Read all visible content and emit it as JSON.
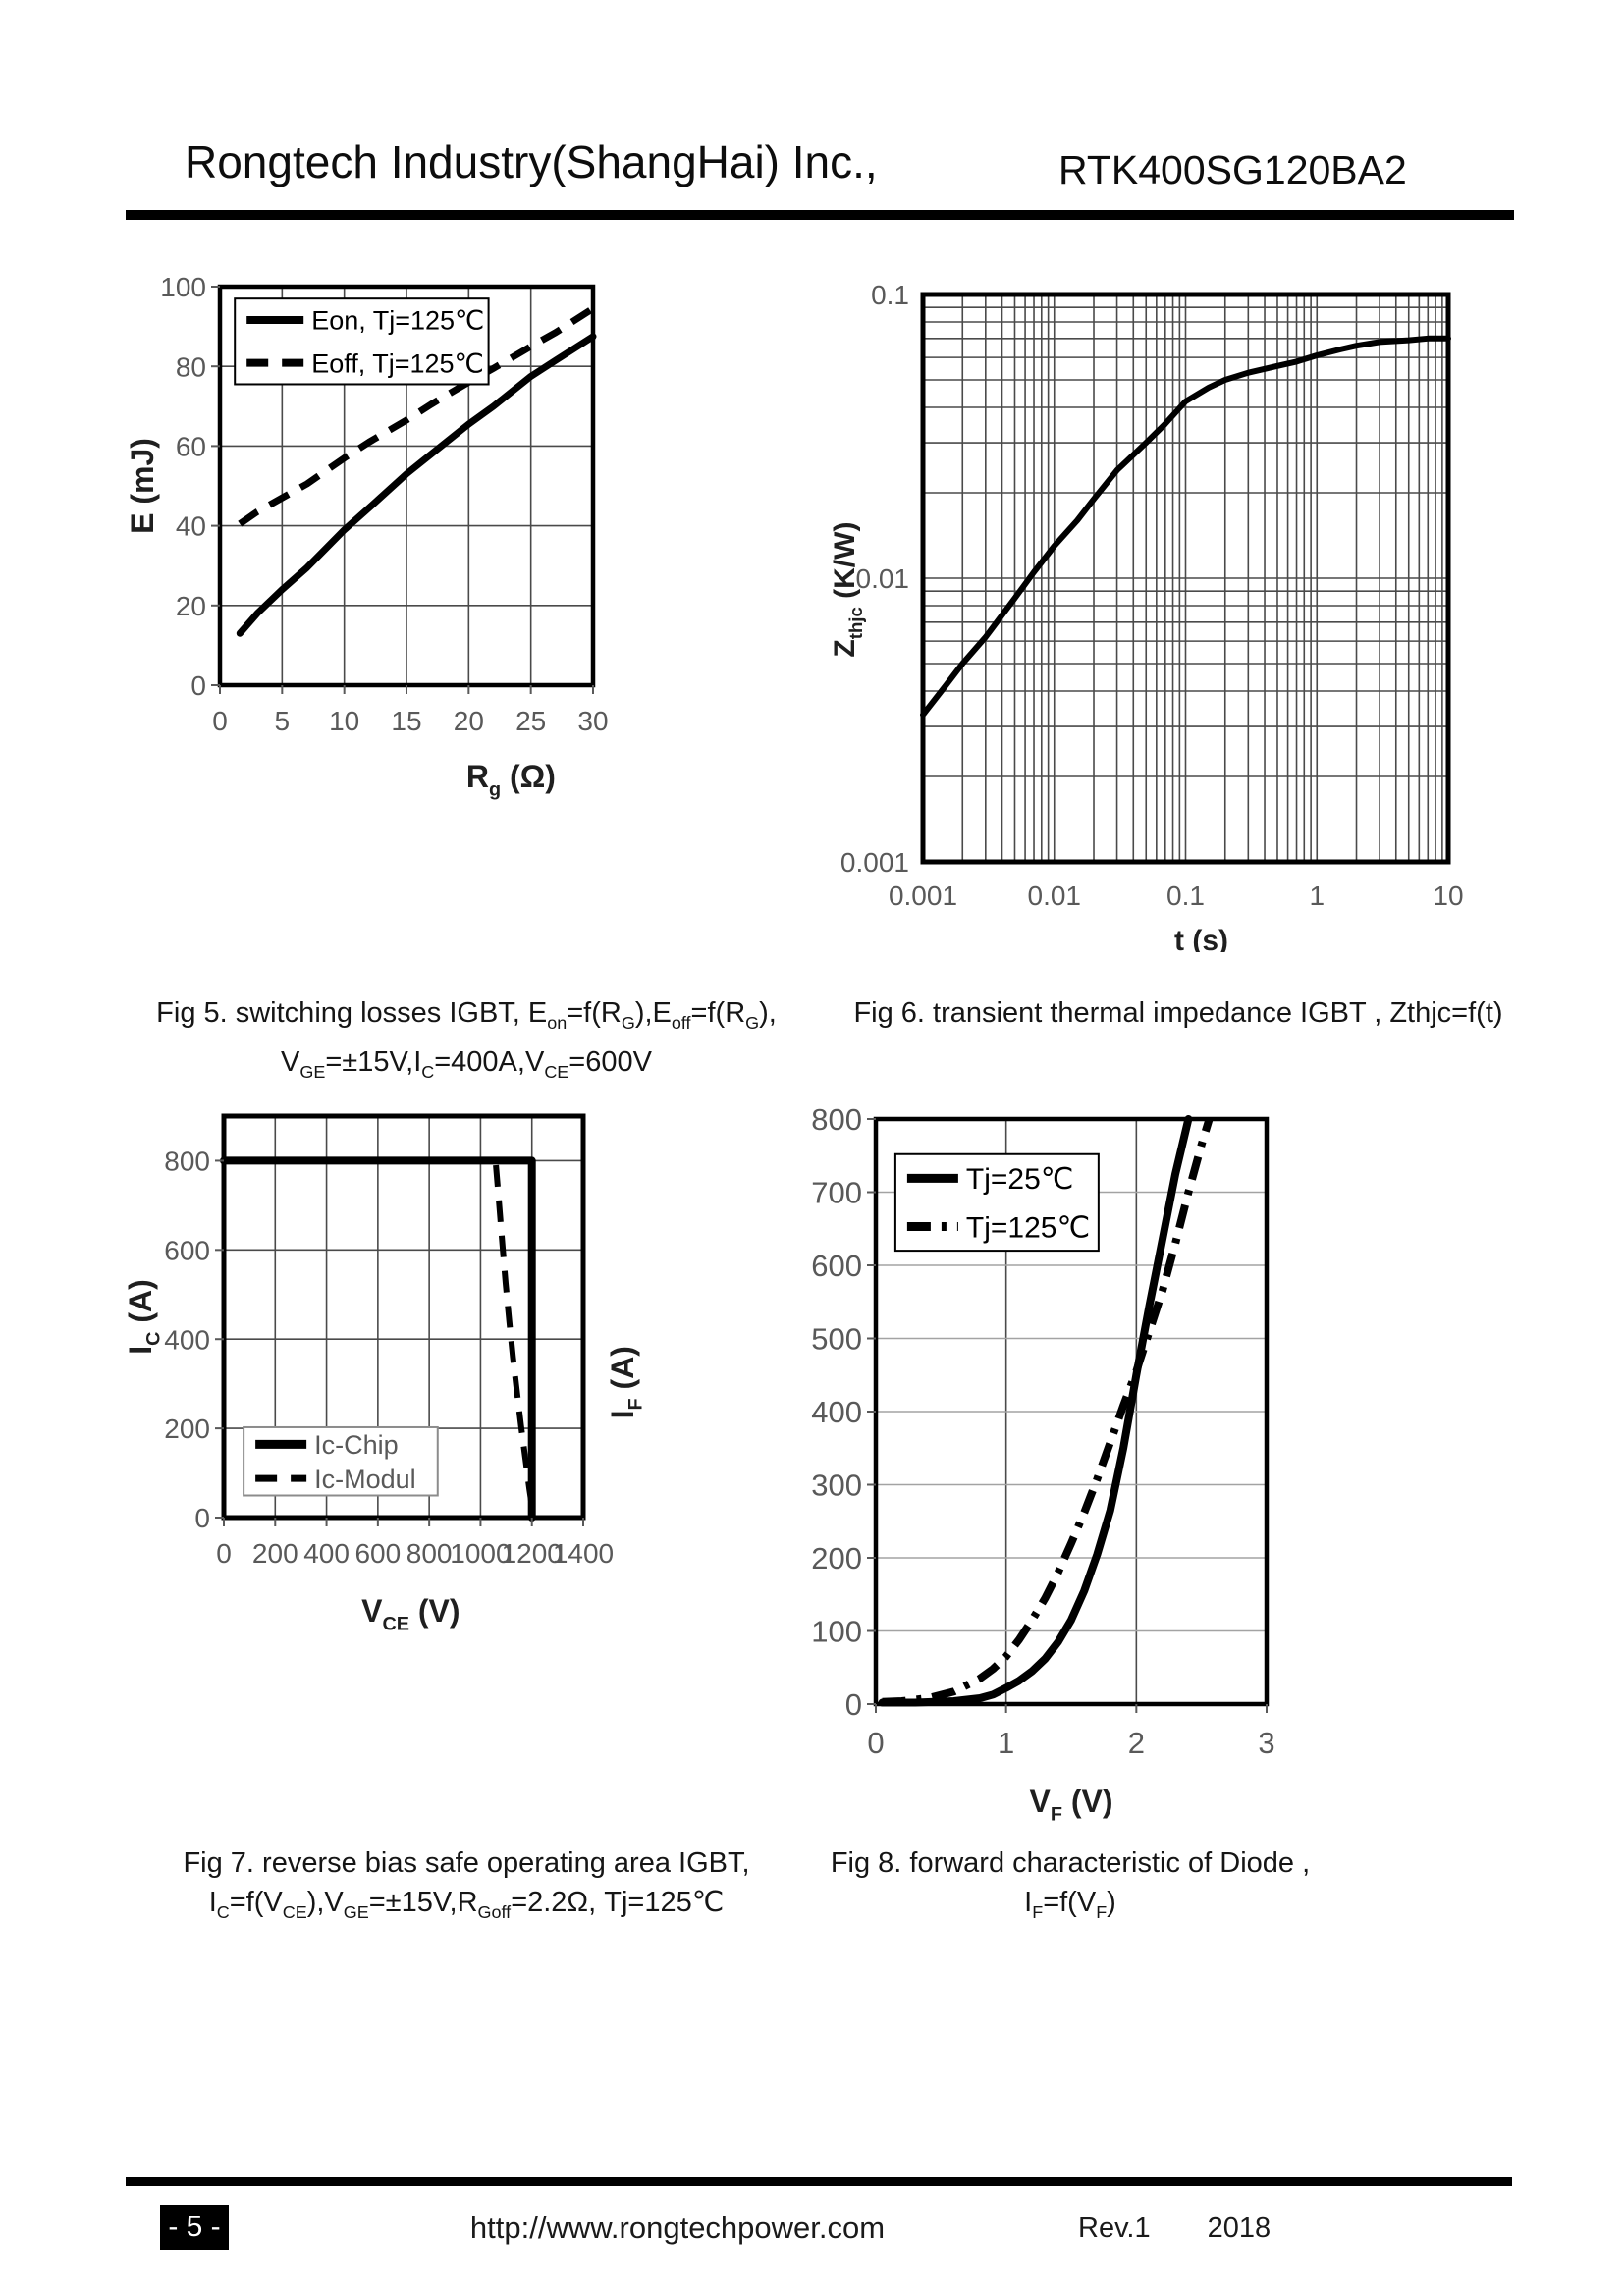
{
  "header": {
    "company": "Rongtech Industry(ShangHai) Inc.,",
    "part_number": "RTK400SG120BA2"
  },
  "footer": {
    "page_number": "- 5 -",
    "url": "http://www.rongtechpower.com",
    "revision": "Rev.1",
    "year": "2018"
  },
  "colors": {
    "curve": "#000000",
    "tick_label": "#595959",
    "grid": "#4a4a4a",
    "axis_title": "#1f1f1f"
  },
  "chart_data": [
    {
      "id": "fig5",
      "type": "line",
      "x_axis": {
        "scale": "linear",
        "min": 0,
        "max": 30,
        "ticks": [
          0,
          5,
          10,
          15,
          20,
          25,
          30
        ],
        "tick_labels": [
          "0",
          "5",
          "10",
          "15",
          "20",
          "25",
          "30"
        ],
        "label_parts": [
          {
            "t": "R"
          },
          {
            "t": "g",
            "sub": true
          },
          {
            "t": " (Ω)"
          }
        ]
      },
      "y_axis": {
        "scale": "linear",
        "min": 0,
        "max": 100,
        "ticks": [
          0,
          20,
          40,
          60,
          80,
          100
        ],
        "tick_labels": [
          "0",
          "20",
          "40",
          "60",
          "80",
          "100"
        ],
        "label_parts": [
          {
            "t": "E (mJ)"
          }
        ]
      },
      "series": [
        {
          "name": "Eon, Tj=125℃",
          "style": "solid",
          "points": [
            [
              1.6,
              13
            ],
            [
              3,
              18
            ],
            [
              5,
              24
            ],
            [
              7,
              29.5
            ],
            [
              10,
              39
            ],
            [
              12,
              44.5
            ],
            [
              15,
              53
            ],
            [
              17,
              58
            ],
            [
              20,
              65.5
            ],
            [
              22,
              70
            ],
            [
              25,
              77.5
            ],
            [
              27,
              81.5
            ],
            [
              30,
              87.5
            ]
          ]
        },
        {
          "name": "Eoff, Tj=125℃",
          "style": "dashed",
          "points": [
            [
              1.6,
              40.5
            ],
            [
              3,
              43.5
            ],
            [
              5,
              47
            ],
            [
              7,
              50.5
            ],
            [
              10,
              57
            ],
            [
              12,
              61
            ],
            [
              15,
              66.5
            ],
            [
              17,
              70.5
            ],
            [
              20,
              76
            ],
            [
              22,
              79.5
            ],
            [
              25,
              85
            ],
            [
              27,
              88.5
            ],
            [
              30,
              94.5
            ]
          ]
        }
      ],
      "legend_position": "top-left",
      "caption": [
        [
          {
            "t": "Fig 5. switching losses IGBT, E"
          },
          {
            "t": "on",
            "sub": true
          },
          {
            "t": "=f(R"
          },
          {
            "t": "G",
            "sub": true
          },
          {
            "t": "),E"
          },
          {
            "t": "off",
            "sub": true
          },
          {
            "t": "=f(R"
          },
          {
            "t": "G",
            "sub": true
          },
          {
            "t": "),"
          }
        ],
        [
          {
            "t": "V"
          },
          {
            "t": "GE",
            "sub": true
          },
          {
            "t": "=±15V,I"
          },
          {
            "t": "C",
            "sub": true
          },
          {
            "t": "=400A,V"
          },
          {
            "t": "CE",
            "sub": true
          },
          {
            "t": "=600V"
          }
        ]
      ]
    },
    {
      "id": "fig6",
      "type": "line",
      "x_axis": {
        "scale": "log",
        "min": 0.001,
        "max": 10,
        "ticks": [
          0.001,
          0.01,
          0.1,
          1,
          10
        ],
        "tick_labels": [
          "0.001",
          "0.01",
          "0.1",
          "1",
          "10"
        ],
        "label_parts": [
          {
            "t": "t (s)"
          }
        ]
      },
      "y_axis": {
        "scale": "log",
        "min": 0.001,
        "max": 0.1,
        "ticks": [
          0.001,
          0.01,
          0.1
        ],
        "tick_labels": [
          "0.001",
          "0.01",
          "0.1"
        ],
        "label_parts": [
          {
            "t": "Z"
          },
          {
            "t": "thjc",
            "sub": true
          },
          {
            "t": " (K/W)"
          }
        ]
      },
      "series": [
        {
          "name": "Zthjc",
          "style": "solid",
          "points": [
            [
              0.001,
              0.0033
            ],
            [
              0.0015,
              0.0042
            ],
            [
              0.002,
              0.005
            ],
            [
              0.003,
              0.0062
            ],
            [
              0.005,
              0.0085
            ],
            [
              0.007,
              0.0105
            ],
            [
              0.01,
              0.013
            ],
            [
              0.015,
              0.016
            ],
            [
              0.02,
              0.019
            ],
            [
              0.03,
              0.024
            ],
            [
              0.05,
              0.03
            ],
            [
              0.07,
              0.035
            ],
            [
              0.1,
              0.042
            ],
            [
              0.15,
              0.047
            ],
            [
              0.2,
              0.05
            ],
            [
              0.3,
              0.053
            ],
            [
              0.5,
              0.056
            ],
            [
              0.7,
              0.058
            ],
            [
              1,
              0.061
            ],
            [
              1.5,
              0.064
            ],
            [
              2,
              0.066
            ],
            [
              3,
              0.068
            ],
            [
              5,
              0.069
            ],
            [
              7,
              0.07
            ],
            [
              10,
              0.07
            ]
          ]
        }
      ],
      "legend_position": "none",
      "caption": [
        [
          {
            "t": "Fig 6. transient thermal impedance IGBT , Zthjc=f(t)"
          }
        ]
      ]
    },
    {
      "id": "fig7",
      "type": "line",
      "x_axis": {
        "scale": "linear",
        "min": 0,
        "max": 1400,
        "ticks": [
          0,
          200,
          400,
          600,
          800,
          1000,
          1200,
          1400
        ],
        "tick_labels": [
          "0",
          "200",
          "400",
          "600",
          "800",
          "1000",
          "1200",
          "1400"
        ],
        "label_parts": [
          {
            "t": "V"
          },
          {
            "t": "CE",
            "sub": true
          },
          {
            "t": " (V)"
          }
        ]
      },
      "y_axis": {
        "scale": "linear",
        "min": 0,
        "max": 900,
        "ticks": [
          0,
          200,
          400,
          600,
          800
        ],
        "tick_labels": [
          "0",
          "200",
          "400",
          "600",
          "800"
        ],
        "label_parts": [
          {
            "t": "I"
          },
          {
            "t": "C",
            "sub": true
          },
          {
            "t": " (A)"
          }
        ]
      },
      "series": [
        {
          "name": "Ic-Chip",
          "style": "solid",
          "points": [
            [
              0,
              800
            ],
            [
              1200,
              800
            ],
            [
              1200,
              0
            ]
          ]
        },
        {
          "name": "Ic-Modul",
          "style": "dashed",
          "points": [
            [
              1060,
              790
            ],
            [
              1072,
              705
            ],
            [
              1085,
              615
            ],
            [
              1098,
              525
            ],
            [
              1112,
              440
            ],
            [
              1126,
              360
            ],
            [
              1142,
              280
            ],
            [
              1158,
              205
            ],
            [
              1174,
              135
            ],
            [
              1190,
              65
            ],
            [
              1202,
              20
            ]
          ]
        }
      ],
      "legend_position": "bottom-left",
      "caption": [
        [
          {
            "t": "Fig 7. reverse bias safe operating area IGBT,"
          }
        ],
        [
          {
            "t": "I"
          },
          {
            "t": "C",
            "sub": true
          },
          {
            "t": "=f(V"
          },
          {
            "t": "CE",
            "sub": true
          },
          {
            "t": "),V"
          },
          {
            "t": "GE",
            "sub": true
          },
          {
            "t": "=±15V,R"
          },
          {
            "t": "Goff",
            "sub": true
          },
          {
            "t": "=2.2Ω,  Tj=125℃"
          }
        ]
      ]
    },
    {
      "id": "fig8",
      "type": "line",
      "x_axis": {
        "scale": "linear",
        "min": 0,
        "max": 3,
        "ticks": [
          0,
          1,
          2,
          3
        ],
        "tick_labels": [
          "0",
          "1",
          "2",
          "3"
        ],
        "grid_ticks": [
          1,
          2
        ],
        "label_parts": [
          {
            "t": "V"
          },
          {
            "t": "F",
            "sub": true
          },
          {
            "t": " (V)"
          }
        ]
      },
      "y_axis": {
        "scale": "linear",
        "min": 0,
        "max": 800,
        "ticks": [
          0,
          100,
          200,
          300,
          400,
          500,
          600,
          700,
          800
        ],
        "tick_labels": [
          "0",
          "100",
          "200",
          "300",
          "400",
          "500",
          "600",
          "700",
          "800"
        ],
        "label_parts": [
          {
            "t": "I"
          },
          {
            "t": "F",
            "sub": true
          },
          {
            "t": " (A)"
          }
        ]
      },
      "series": [
        {
          "name": "Tj=25℃",
          "style": "solid",
          "points": [
            [
              0.05,
              2
            ],
            [
              0.3,
              2
            ],
            [
              0.6,
              4
            ],
            [
              0.8,
              8
            ],
            [
              0.9,
              13
            ],
            [
              1.0,
              22
            ],
            [
              1.1,
              32
            ],
            [
              1.2,
              45
            ],
            [
              1.3,
              62
            ],
            [
              1.4,
              85
            ],
            [
              1.5,
              115
            ],
            [
              1.6,
              155
            ],
            [
              1.7,
              205
            ],
            [
              1.8,
              265
            ],
            [
              1.9,
              350
            ],
            [
              2.0,
              450
            ],
            [
              2.1,
              545
            ],
            [
              2.2,
              635
            ],
            [
              2.3,
              725
            ],
            [
              2.4,
              800
            ]
          ]
        },
        {
          "name": "Tj=125℃",
          "style": "dashdot",
          "points": [
            [
              0.05,
              3
            ],
            [
              0.2,
              4
            ],
            [
              0.4,
              8
            ],
            [
              0.6,
              17
            ],
            [
              0.8,
              35
            ],
            [
              0.9,
              48
            ],
            [
              1.0,
              65
            ],
            [
              1.1,
              88
            ],
            [
              1.2,
              115
            ],
            [
              1.3,
              145
            ],
            [
              1.4,
              180
            ],
            [
              1.5,
              220
            ],
            [
              1.6,
              262
            ],
            [
              1.7,
              308
            ],
            [
              1.8,
              358
            ],
            [
              1.9,
              408
            ],
            [
              2.0,
              455
            ],
            [
              2.1,
              510
            ],
            [
              2.2,
              565
            ],
            [
              2.3,
              630
            ],
            [
              2.4,
              700
            ],
            [
              2.5,
              765
            ],
            [
              2.56,
              800
            ]
          ]
        }
      ],
      "legend_position": "top-left",
      "caption": [
        [
          {
            "t": "Fig 8. forward characteristic of  Diode ,"
          }
        ],
        [
          {
            "t": "I"
          },
          {
            "t": "F",
            "sub": true
          },
          {
            "t": "=f(V"
          },
          {
            "t": "F",
            "sub": true
          },
          {
            "t": ")"
          }
        ]
      ]
    }
  ]
}
